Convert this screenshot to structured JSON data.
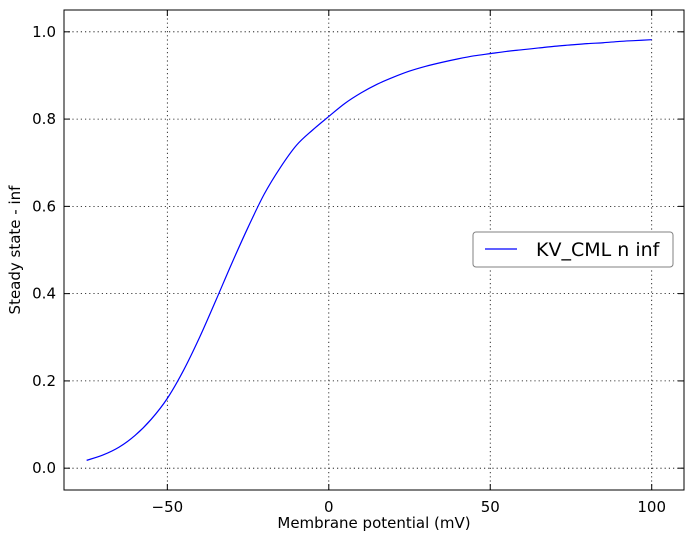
{
  "chart_data": {
    "type": "line",
    "title": "",
    "xlabel": "Membrane potential (mV)",
    "ylabel": "Steady state - inf",
    "xlim": [
      -82,
      110
    ],
    "ylim": [
      -0.05,
      1.05
    ],
    "xticks": [
      -50,
      0,
      50,
      100
    ],
    "xtick_labels": [
      "−50",
      "0",
      "50",
      "100"
    ],
    "yticks": [
      0.0,
      0.2,
      0.4,
      0.6,
      0.8,
      1.0
    ],
    "ytick_labels": [
      "0.0",
      "0.2",
      "0.4",
      "0.6",
      "0.8",
      "1.0"
    ],
    "grid": true,
    "legend_position": "right",
    "series": [
      {
        "name": "KV_CML n inf",
        "color": "#0000ff",
        "x": [
          -75,
          -70,
          -65,
          -60,
          -55,
          -50,
          -45,
          -40,
          -35,
          -30,
          -25,
          -20,
          -15,
          -10,
          -5,
          0,
          5,
          10,
          15,
          20,
          25,
          30,
          35,
          40,
          45,
          50,
          55,
          60,
          65,
          70,
          75,
          80,
          85,
          90,
          95,
          100
        ],
        "y": [
          0.018,
          0.03,
          0.048,
          0.075,
          0.112,
          0.16,
          0.224,
          0.3,
          0.384,
          0.47,
          0.552,
          0.628,
          0.689,
          0.74,
          0.775,
          0.806,
          0.836,
          0.86,
          0.88,
          0.896,
          0.91,
          0.921,
          0.93,
          0.938,
          0.945,
          0.95,
          0.955,
          0.959,
          0.963,
          0.967,
          0.97,
          0.973,
          0.975,
          0.978,
          0.98,
          0.982
        ]
      }
    ]
  }
}
